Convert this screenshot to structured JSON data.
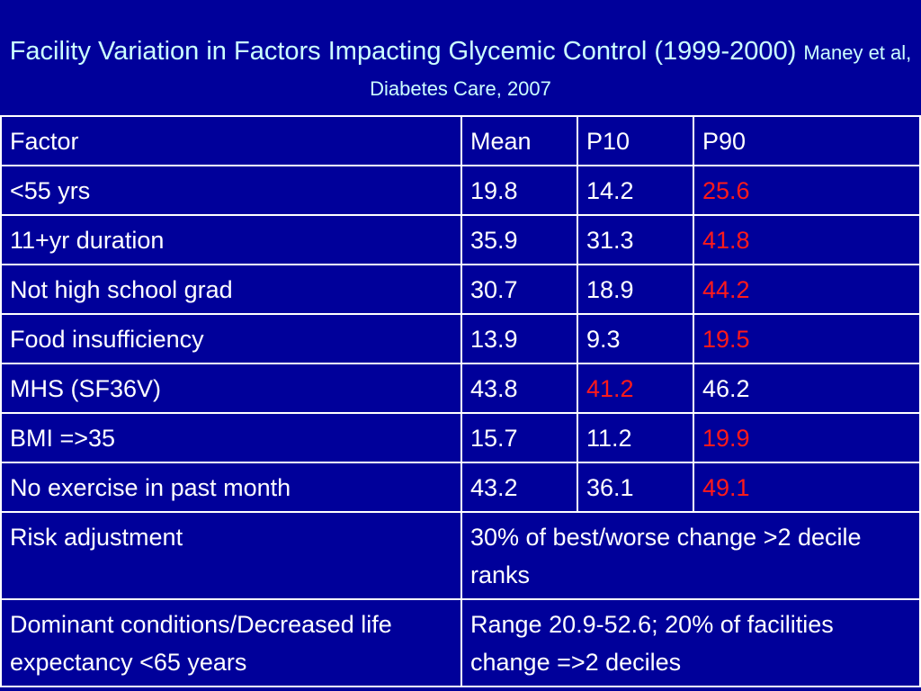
{
  "slide": {
    "title_main": "Facility Variation in  Factors Impacting  Glycemic Control (1999-2000)",
    "title_citation": "Maney et al, Diabetes Care, 2007",
    "highlight_color": "#ff1a1a"
  },
  "table": {
    "header": [
      "Factor",
      "Mean",
      "P10",
      "P90"
    ],
    "rows": [
      {
        "factor": "<55 yrs",
        "mean": "19.8",
        "p10": "14.2",
        "p90": "25.6"
      },
      {
        "factor": "11+yr duration",
        "mean": "35.9",
        "p10": "31.3",
        "p90": "41.8"
      },
      {
        "factor": "Not high school grad",
        "mean": "30.7",
        "p10": "18.9",
        "p90": "44.2"
      },
      {
        "factor": "Food insufficiency",
        "mean": "13.9",
        "p10": "9.3",
        "p90": "19.5"
      },
      {
        "factor": "MHS (SF36V)",
        "mean": "43.8",
        "p10": "41.2",
        "p90": "46.2"
      },
      {
        "factor": "BMI =>35",
        "mean": "15.7",
        "p10": "11.2",
        "p90": "19.9"
      },
      {
        "factor": "No exercise in past month",
        "mean": "43.2",
        "p10": "36.1",
        "p90": "49.1"
      }
    ],
    "summary_rows": [
      {
        "factor": "Risk adjustment",
        "detail": "30% of best/worse change >2 decile ranks"
      },
      {
        "factor": "Dominant conditions/Decreased life expectancy <65 years",
        "detail": "Range 20.9-52.6; 20% of facilities change =>2 deciles"
      }
    ]
  }
}
